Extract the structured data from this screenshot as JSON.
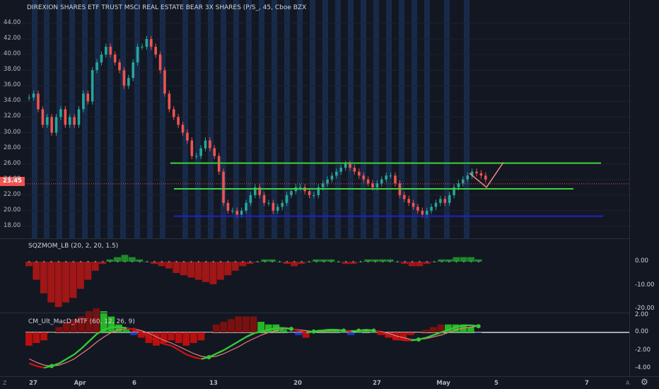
{
  "title": "DIREXION SHARES ETF TRUST MSCI REAL ESTATE BEAR 3X SHARES (P/S_, 45, Cboe BZX",
  "price_badge": "23.45",
  "price_axis_ticks": [
    "44.00",
    "42.00",
    "40.00",
    "38.00",
    "36.00",
    "34.00",
    "32.00",
    "30.00",
    "28.00",
    "26.00",
    "24.00",
    "22.00",
    "20.00",
    "18.00"
  ],
  "panes": [
    {
      "label": "SQZMOM_LB (20, 2, 20, 1.5)",
      "ticks": [
        "0.00",
        "-10.00",
        "-20.00"
      ]
    },
    {
      "label": "CM_Ult_MacD_MTF (60, 12, 26, 9)",
      "ticks": [
        "2.00",
        "0.00",
        "-2.00",
        "-4.00"
      ]
    }
  ],
  "time_axis": [
    "27",
    "Apr",
    "6",
    "13",
    "20",
    "27",
    "May",
    "5",
    "7"
  ],
  "corner_left": "Z",
  "corner_right": "A",
  "settings_icon": "gear-icon",
  "colors": {
    "background": "#131722",
    "up": "#26a69a",
    "down": "#ef5350",
    "green_line": "#3cd33c",
    "blue_line": "#2121c8",
    "session_band": "#1b3a6a"
  },
  "chart_data": {
    "type": "candlestick",
    "symbol_title": "DIREXION SHARES ETF TRUST MSCI REAL ESTATE BEAR 3X SHARES (P/S_, 45, Cboe BZX",
    "ylim": [
      17,
      45
    ],
    "last_price": 23.45,
    "close_path": [
      34.5,
      35,
      33,
      31,
      32,
      30,
      32,
      33,
      31,
      32,
      31,
      33,
      35,
      34,
      38,
      39,
      40,
      41,
      40,
      39,
      38,
      36,
      37,
      39,
      41,
      41,
      42,
      41,
      40,
      38,
      35,
      33,
      32,
      31,
      30,
      29,
      27,
      27,
      28,
      29,
      28,
      27,
      25,
      21,
      20,
      20,
      19.5,
      20,
      21,
      22,
      23,
      22,
      21,
      21,
      20,
      20.5,
      21,
      22,
      22.5,
      23,
      23,
      22.5,
      22,
      22,
      23,
      23.5,
      24,
      24.5,
      25,
      25.5,
      26,
      25.5,
      25,
      24.5,
      24,
      23.5,
      23,
      23.5,
      24,
      24.5,
      24.5,
      23.5,
      22,
      21.5,
      21,
      20.5,
      20,
      19.5,
      20,
      20.5,
      21,
      21.5,
      21,
      22,
      23,
      23.5,
      24,
      24.5,
      25,
      24.8,
      24.5,
      24
    ],
    "projection": [
      24.8,
      23.0,
      26.2
    ],
    "lines": [
      {
        "name": "resistance",
        "value": 26.1,
        "color": "green"
      },
      {
        "name": "mid",
        "value": 22.8,
        "color": "green"
      },
      {
        "name": "support",
        "value": 19.3,
        "color": "blue"
      }
    ],
    "sqzmom": [
      -2,
      -8,
      -14,
      -18,
      -20,
      -18,
      -16,
      -12,
      -8,
      -4,
      -1,
      1,
      2,
      3,
      2,
      1,
      0,
      -1,
      -2,
      -3,
      -5,
      -6,
      -7,
      -8,
      -9,
      -10,
      -8,
      -6,
      -4,
      -2,
      -1,
      0,
      1,
      1,
      0,
      -1,
      -2,
      -1,
      0,
      1,
      1,
      1,
      0,
      -1,
      -1,
      0,
      1,
      1,
      1,
      1,
      0,
      -1,
      -2,
      -2,
      -1,
      0,
      1,
      1,
      2,
      2,
      2,
      1
    ],
    "macd": [
      -3.5,
      -3.8,
      -4.0,
      -3.8,
      -3.5,
      -3.0,
      -2.5,
      -1.8,
      -1.0,
      -0.2,
      0.3,
      0.6,
      0.6,
      0.5,
      0.3,
      0,
      -0.5,
      -1.0,
      -1.3,
      -1.5,
      -2.0,
      -2.5,
      -2.8,
      -3.0,
      -2.8,
      -2.4,
      -2.0,
      -1.5,
      -1.0,
      -0.5,
      -0.1,
      0.1,
      0.3,
      0.5,
      0.5,
      0.4,
      0.2,
      0.0,
      0.1,
      0.2,
      0.3,
      0.3,
      0.2,
      0.1,
      0.2,
      0.3,
      0.2,
      0.0,
      -0.3,
      -0.7,
      -0.9,
      -0.9,
      -0.8,
      -0.6,
      -0.3,
      0.0,
      0.3,
      0.6,
      0.8,
      0.8,
      0.7
    ],
    "macd_signal": [
      -3.0,
      -3.4,
      -3.7,
      -3.8,
      -3.7,
      -3.4,
      -3.0,
      -2.4,
      -1.8,
      -1.1,
      -0.5,
      0.0,
      0.3,
      0.4,
      0.4,
      0.2,
      -0.1,
      -0.5,
      -0.9,
      -1.2,
      -1.6,
      -2.0,
      -2.4,
      -2.7,
      -2.8,
      -2.7,
      -2.4,
      -2.0,
      -1.6,
      -1.1,
      -0.7,
      -0.3,
      0.0,
      0.2,
      0.4,
      0.4,
      0.3,
      0.2,
      0.1,
      0.1,
      0.2,
      0.2,
      0.2,
      0.2,
      0.2,
      0.2,
      0.2,
      0.1,
      -0.1,
      -0.4,
      -0.6,
      -0.8,
      -0.8,
      -0.7,
      -0.5,
      -0.3,
      0.0,
      0.3,
      0.5,
      0.6,
      0.7
    ]
  }
}
